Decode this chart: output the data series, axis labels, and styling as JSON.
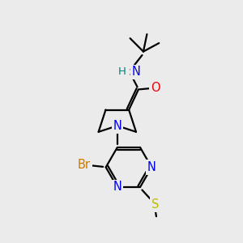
{
  "background_color": "#ebebeb",
  "bond_color": "#000000",
  "N_color": "#0000ee",
  "O_color": "#ee0000",
  "S_color": "#bbbb00",
  "Br_color": "#cc7700",
  "NH_color": "#008080",
  "line_width": 1.6,
  "font_size": 10.5,
  "xlim": [
    0,
    10
  ],
  "ylim": [
    0,
    10
  ]
}
